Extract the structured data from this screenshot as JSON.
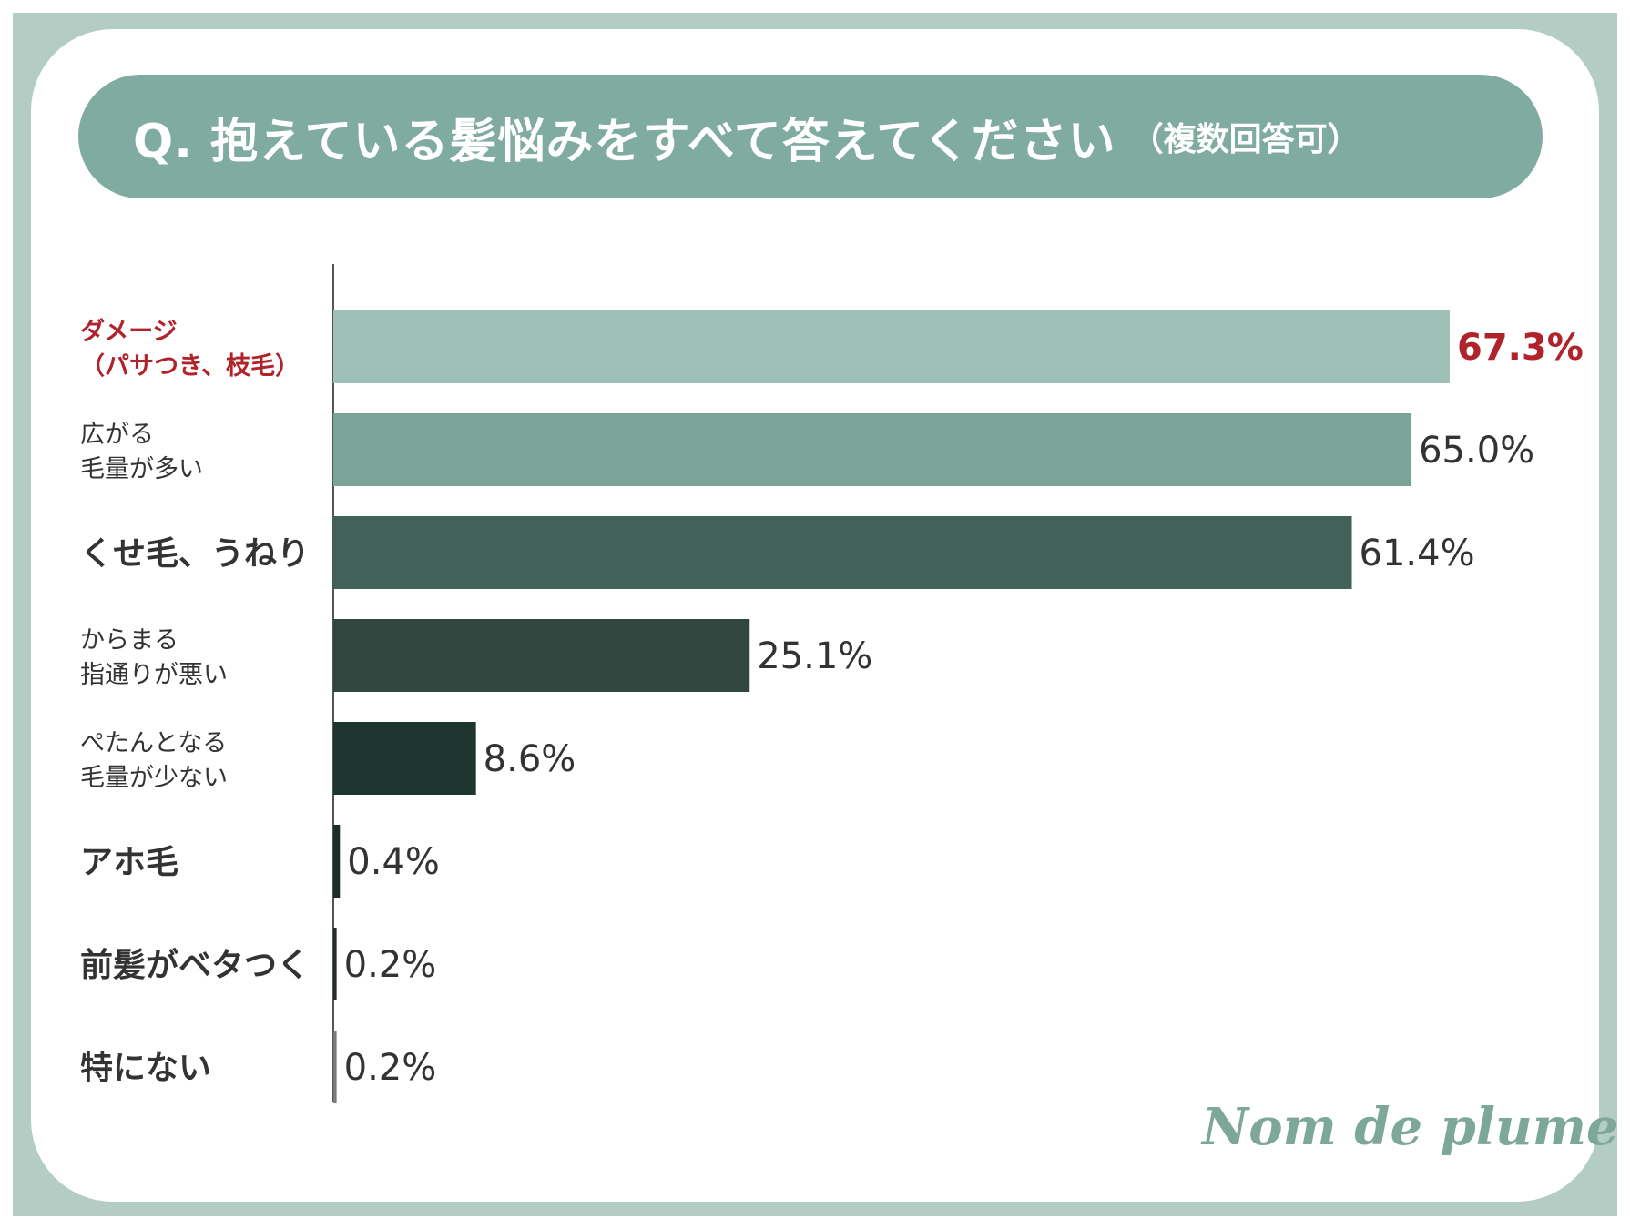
{
  "title": {
    "main": "Q. 抱えている髪悩みをすべて答えてください",
    "sub": "（複数回答可）"
  },
  "logo": "Nom de plume",
  "chart_data": {
    "type": "bar",
    "orientation": "horizontal",
    "title": "Q. 抱えている髪悩みをすべて答えてください（複数回答可）",
    "xlabel": "",
    "ylabel": "",
    "xlim": [
      0,
      67.3
    ],
    "grid": false,
    "categories": [
      [
        "ダメージ",
        "（パサつき、枝毛）"
      ],
      [
        "広がる",
        "毛量が多い"
      ],
      [
        "くせ毛、うねり"
      ],
      [
        "からまる",
        "指通りが悪い"
      ],
      [
        "ぺたんとなる",
        "毛量が少ない"
      ],
      [
        "アホ毛"
      ],
      [
        "前髪がベタつく"
      ],
      [
        "特にない"
      ]
    ],
    "values": [
      67.3,
      65.0,
      61.4,
      25.1,
      8.6,
      0.4,
      0.2,
      0.2
    ],
    "value_labels": [
      "67.3%",
      "65.0%",
      "61.4%",
      "25.1%",
      "8.6%",
      "0.4%",
      "0.2%",
      "0.2%"
    ],
    "bar_colors": [
      "#9fc0b6",
      "#7ca398",
      "#426158",
      "#30463f",
      "#1d3730",
      "#1b2e28",
      "#262e2b",
      "#7a7a7a"
    ],
    "highlight_color": "#b0232a",
    "text_color": "#333333",
    "highlight_index": 0
  }
}
